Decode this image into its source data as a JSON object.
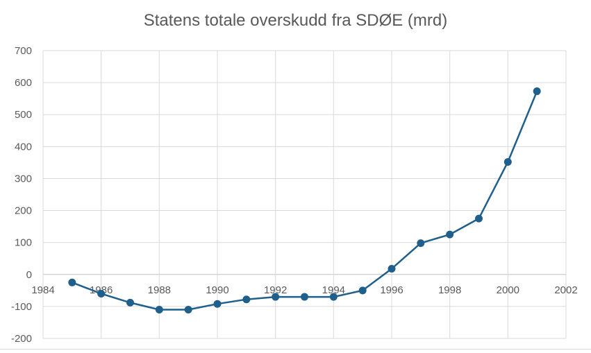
{
  "chart_data": {
    "type": "line",
    "title": "Statens totale overskudd fra SDØE (mrd)",
    "xlabel": "",
    "ylabel": "",
    "xlim": [
      1984,
      2002
    ],
    "ylim": [
      -200,
      700
    ],
    "x_ticks": [
      1984,
      1986,
      1988,
      1990,
      1992,
      1994,
      1996,
      1998,
      2000,
      2002
    ],
    "y_ticks": [
      -200,
      -100,
      0,
      100,
      200,
      300,
      400,
      500,
      600,
      700
    ],
    "grid": true,
    "legend": "none",
    "colors": {
      "series": "#1f5f8b",
      "grid": "#d9d9d9",
      "axis": "#bfbfbf",
      "text": "#595959"
    },
    "series": [
      {
        "x": [
          1985,
          1986,
          1987,
          1988,
          1989,
          1990,
          1991,
          1992,
          1993,
          1994,
          1995,
          1996,
          1997,
          1998,
          1999,
          2000,
          2001
        ],
        "values": [
          -25,
          -60,
          -88,
          -110,
          -110,
          -92,
          -78,
          -70,
          -70,
          -70,
          -50,
          18,
          98,
          125,
          175,
          352,
          573
        ]
      }
    ]
  }
}
